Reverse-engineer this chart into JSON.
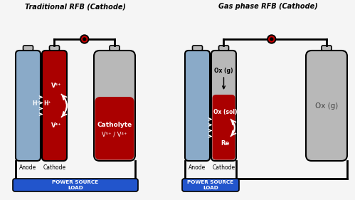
{
  "bg_color": "#f5f5f5",
  "title_left": "Traditional RFB (Cathode)",
  "title_right": "Gas phase RFB (Cathode)",
  "blue_color": "#8aaac8",
  "red_color": "#aa0000",
  "gray_color": "#b8b8b8",
  "black": "#000000",
  "blue_box_color": "#2255cc",
  "power_text": "POWER SOURCE\nLOAD",
  "anode_text": "Anode",
  "cathode_text": "Cathode"
}
